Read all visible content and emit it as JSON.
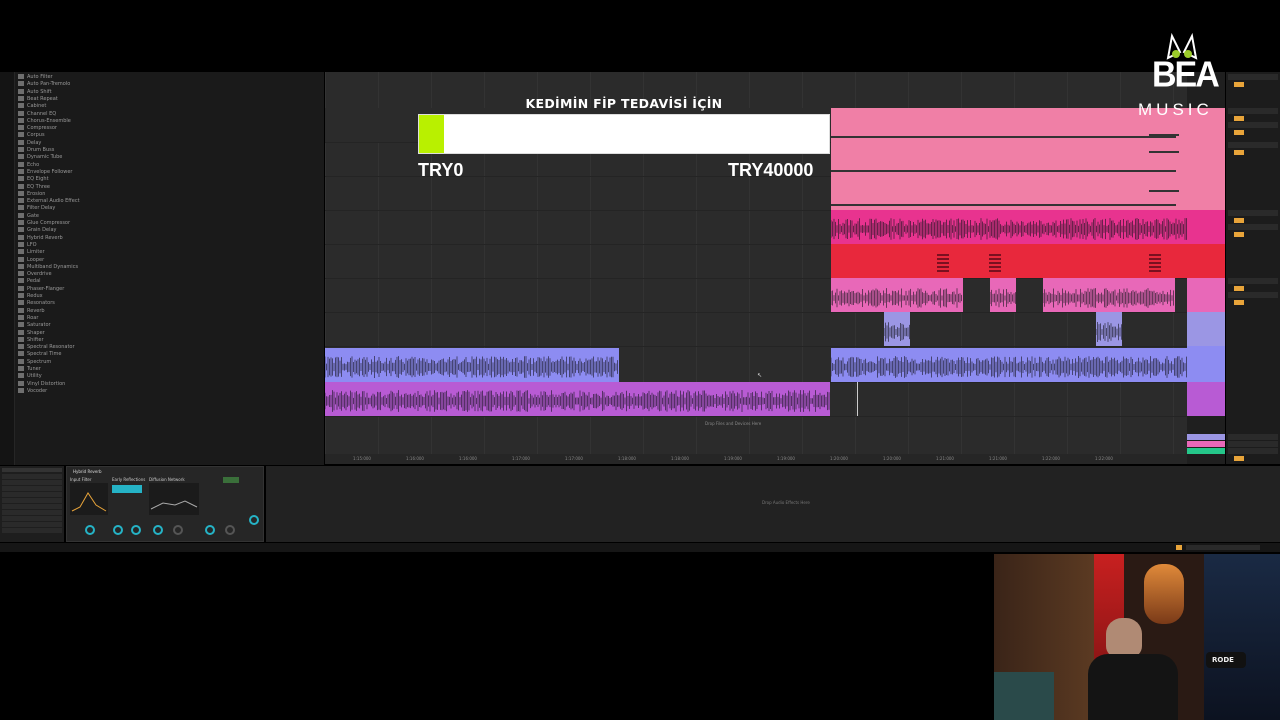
{
  "overlay": {
    "title": "KEDİMİN FİP TEDAVİSİ İÇİN",
    "min_label": "TRY0",
    "max_label": "TRY40000",
    "progress_fraction": 0.06,
    "fill_color": "#b9f000"
  },
  "logo": {
    "main": "BEA",
    "sub": "MUSIC"
  },
  "arrangement": {
    "drop_hint": "Drop Files and Devices Here",
    "timeline_labels": [
      "1:15:000",
      "1:16:000",
      "1:16:000",
      "1:17:000",
      "1:17:000",
      "1:18:000",
      "1:18:000",
      "1:19:000",
      "1:19:000",
      "1:20:000",
      "1:20:000",
      "1:21:000",
      "1:21:000",
      "1:22:000",
      "1:22:000"
    ]
  },
  "sidebar": {
    "items": [
      "Auto Filter",
      "Auto Pan-Tremolo",
      "Auto Shift",
      "Beat Repeat",
      "Cabinet",
      "Channel EQ",
      "Chorus-Ensemble",
      "Compressor",
      "Corpus",
      "Delay",
      "Drum Buss",
      "Dynamic Tube",
      "Echo",
      "Envelope Follower",
      "EQ Eight",
      "EQ Three",
      "Erosion",
      "External Audio Effect",
      "Filter Delay",
      "Gate",
      "Glue Compressor",
      "Grain Delay",
      "Hybrid Reverb",
      "LFO",
      "Limiter",
      "Looper",
      "Multiband Dynamics",
      "Overdrive",
      "Pedal",
      "Phaser-Flanger",
      "Redux",
      "Resonators",
      "Reverb",
      "Roar",
      "Saturator",
      "Shaper",
      "Shifter",
      "Spectral Resonator",
      "Spectral Time",
      "Spectrum",
      "Tuner",
      "Utility",
      "Vinyl Distortion",
      "Vocoder"
    ]
  },
  "device": {
    "title": "Hybrid Reverb",
    "sections": [
      "Input Filter",
      "Early Reflections",
      "Diffusion Network"
    ]
  },
  "bottom": {
    "drop_fx_hint": "Drop Audio Effects Here"
  },
  "colors": {
    "pink": "#f07fa6",
    "magenta": "#e8338f",
    "red": "#e8283c",
    "blue_clip": "#8d8cf2",
    "violet_clip": "#b85bd4",
    "lavender": "#9b96e4"
  }
}
